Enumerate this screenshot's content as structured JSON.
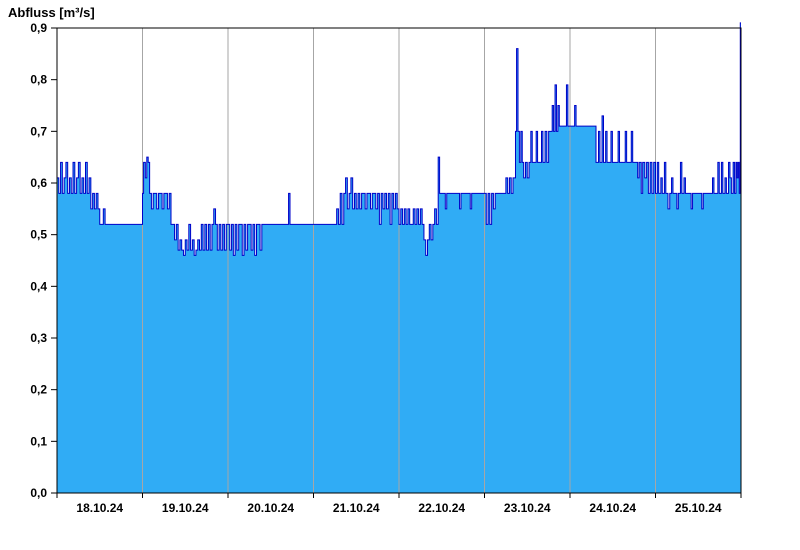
{
  "chart_data": {
    "type": "area",
    "title": "Abfluss [m³/s]",
    "xlabel": "",
    "ylabel": "Abfluss [m³/s]",
    "ylim": [
      0.0,
      0.9
    ],
    "t_range": [
      0,
      192
    ],
    "x_unit": "hours",
    "grid": "vertical-day-lines",
    "legend": "none",
    "fill_color": "#30ACF5",
    "line_color": "#0000C8",
    "grid_color": "#A6A6A6",
    "axis_color": "#000000",
    "x_labels": [
      "18.10.24",
      "19.10.24",
      "20.10.24",
      "21.10.24",
      "22.10.24",
      "23.10.24",
      "24.10.24",
      "25.10.24"
    ],
    "y_ticks": [
      {
        "value": 0.0,
        "label": "0,0"
      },
      {
        "value": 0.1,
        "label": "0,1"
      },
      {
        "value": 0.2,
        "label": "0,2"
      },
      {
        "value": 0.3,
        "label": "0,3"
      },
      {
        "value": 0.4,
        "label": "0,4"
      },
      {
        "value": 0.5,
        "label": "0,5"
      },
      {
        "value": 0.6,
        "label": "0,6"
      },
      {
        "value": 0.7,
        "label": "0,7"
      },
      {
        "value": 0.8,
        "label": "0,8"
      },
      {
        "value": 0.9,
        "label": "0,9"
      }
    ],
    "points": [
      [
        0,
        0.61
      ],
      [
        0.5,
        0.58
      ],
      [
        1,
        0.64
      ],
      [
        1.5,
        0.58
      ],
      [
        2,
        0.61
      ],
      [
        2.5,
        0.64
      ],
      [
        3,
        0.58
      ],
      [
        3.5,
        0.61
      ],
      [
        4,
        0.58
      ],
      [
        4.5,
        0.64
      ],
      [
        5,
        0.58
      ],
      [
        5.5,
        0.61
      ],
      [
        6,
        0.64
      ],
      [
        6.5,
        0.58
      ],
      [
        7,
        0.61
      ],
      [
        7.5,
        0.58
      ],
      [
        8,
        0.64
      ],
      [
        8.5,
        0.58
      ],
      [
        9,
        0.61
      ],
      [
        9.5,
        0.55
      ],
      [
        10,
        0.58
      ],
      [
        10.5,
        0.55
      ],
      [
        11,
        0.58
      ],
      [
        11.5,
        0.55
      ],
      [
        12,
        0.52
      ],
      [
        13,
        0.55
      ],
      [
        13.5,
        0.52
      ],
      [
        24,
        0.58
      ],
      [
        24.3,
        0.64
      ],
      [
        24.8,
        0.61
      ],
      [
        25.2,
        0.65
      ],
      [
        25.6,
        0.64
      ],
      [
        26,
        0.58
      ],
      [
        26.5,
        0.55
      ],
      [
        27,
        0.58
      ],
      [
        28,
        0.55
      ],
      [
        28.5,
        0.58
      ],
      [
        29.5,
        0.55
      ],
      [
        30,
        0.58
      ],
      [
        31,
        0.55
      ],
      [
        31.5,
        0.58
      ],
      [
        32,
        0.52
      ],
      [
        33,
        0.49
      ],
      [
        33.5,
        0.52
      ],
      [
        34,
        0.47
      ],
      [
        34.5,
        0.49
      ],
      [
        35,
        0.47
      ],
      [
        35.5,
        0.46
      ],
      [
        36,
        0.49
      ],
      [
        36.5,
        0.47
      ],
      [
        37,
        0.52
      ],
      [
        37.5,
        0.47
      ],
      [
        38,
        0.49
      ],
      [
        38.5,
        0.46
      ],
      [
        39,
        0.47
      ],
      [
        39.5,
        0.49
      ],
      [
        40,
        0.47
      ],
      [
        40.5,
        0.52
      ],
      [
        41,
        0.47
      ],
      [
        41.5,
        0.52
      ],
      [
        42,
        0.47
      ],
      [
        42.5,
        0.52
      ],
      [
        43,
        0.47
      ],
      [
        43.5,
        0.52
      ],
      [
        44,
        0.55
      ],
      [
        44.5,
        0.52
      ],
      [
        45,
        0.47
      ],
      [
        45.5,
        0.52
      ],
      [
        46,
        0.47
      ],
      [
        46.5,
        0.52
      ],
      [
        47,
        0.47
      ],
      [
        47.5,
        0.52
      ],
      [
        48.5,
        0.47
      ],
      [
        49,
        0.52
      ],
      [
        49.5,
        0.46
      ],
      [
        50,
        0.52
      ],
      [
        50.5,
        0.47
      ],
      [
        51,
        0.52
      ],
      [
        52,
        0.46
      ],
      [
        52.5,
        0.52
      ],
      [
        53,
        0.47
      ],
      [
        53.5,
        0.52
      ],
      [
        54.5,
        0.47
      ],
      [
        55,
        0.52
      ],
      [
        55.5,
        0.46
      ],
      [
        56,
        0.52
      ],
      [
        57,
        0.47
      ],
      [
        57.5,
        0.52
      ],
      [
        65,
        0.58
      ],
      [
        65.4,
        0.52
      ],
      [
        78.5,
        0.55
      ],
      [
        79,
        0.52
      ],
      [
        79.5,
        0.58
      ],
      [
        80,
        0.52
      ],
      [
        80.5,
        0.58
      ],
      [
        81,
        0.61
      ],
      [
        81.5,
        0.55
      ],
      [
        82,
        0.58
      ],
      [
        82.5,
        0.61
      ],
      [
        83,
        0.55
      ],
      [
        83.5,
        0.58
      ],
      [
        84,
        0.55
      ],
      [
        84.5,
        0.58
      ],
      [
        85,
        0.55
      ],
      [
        85.5,
        0.58
      ],
      [
        86.5,
        0.55
      ],
      [
        87,
        0.58
      ],
      [
        88,
        0.55
      ],
      [
        88.5,
        0.58
      ],
      [
        89.5,
        0.55
      ],
      [
        90,
        0.58
      ],
      [
        90.5,
        0.52
      ],
      [
        91,
        0.58
      ],
      [
        91.5,
        0.55
      ],
      [
        92,
        0.58
      ],
      [
        92.5,
        0.55
      ],
      [
        93,
        0.58
      ],
      [
        93.5,
        0.52
      ],
      [
        94,
        0.58
      ],
      [
        94.5,
        0.55
      ],
      [
        95,
        0.58
      ],
      [
        95.5,
        0.55
      ],
      [
        96,
        0.52
      ],
      [
        96.5,
        0.55
      ],
      [
        97,
        0.52
      ],
      [
        97.5,
        0.55
      ],
      [
        98,
        0.52
      ],
      [
        98.5,
        0.55
      ],
      [
        99,
        0.52
      ],
      [
        100,
        0.55
      ],
      [
        100.5,
        0.52
      ],
      [
        101,
        0.55
      ],
      [
        101.5,
        0.52
      ],
      [
        102,
        0.55
      ],
      [
        102.5,
        0.52
      ],
      [
        103,
        0.49
      ],
      [
        103.5,
        0.46
      ],
      [
        104,
        0.49
      ],
      [
        104.5,
        0.52
      ],
      [
        105,
        0.49
      ],
      [
        105.5,
        0.52
      ],
      [
        106,
        0.55
      ],
      [
        106.5,
        0.52
      ],
      [
        107,
        0.65
      ],
      [
        107.4,
        0.58
      ],
      [
        109,
        0.55
      ],
      [
        109.4,
        0.58
      ],
      [
        113,
        0.55
      ],
      [
        113.4,
        0.58
      ],
      [
        116,
        0.55
      ],
      [
        116.4,
        0.58
      ],
      [
        120,
        0.58
      ],
      [
        120.5,
        0.52
      ],
      [
        121,
        0.58
      ],
      [
        121.5,
        0.52
      ],
      [
        122,
        0.58
      ],
      [
        122.5,
        0.55
      ],
      [
        123,
        0.58
      ],
      [
        126,
        0.61
      ],
      [
        126.5,
        0.58
      ],
      [
        127,
        0.61
      ],
      [
        127.5,
        0.58
      ],
      [
        128,
        0.61
      ],
      [
        128.7,
        0.7
      ],
      [
        129,
        0.86
      ],
      [
        129.4,
        0.7
      ],
      [
        129.8,
        0.64
      ],
      [
        130.2,
        0.7
      ],
      [
        130.6,
        0.64
      ],
      [
        131,
        0.61
      ],
      [
        131.5,
        0.64
      ],
      [
        132,
        0.61
      ],
      [
        132.5,
        0.64
      ],
      [
        133,
        0.7
      ],
      [
        133.4,
        0.64
      ],
      [
        134.5,
        0.7
      ],
      [
        134.9,
        0.64
      ],
      [
        136,
        0.7
      ],
      [
        136.4,
        0.64
      ],
      [
        137,
        0.7
      ],
      [
        137.5,
        0.64
      ],
      [
        138,
        0.7
      ],
      [
        139,
        0.75
      ],
      [
        139.4,
        0.7
      ],
      [
        139.8,
        0.79
      ],
      [
        140.2,
        0.7
      ],
      [
        140.6,
        0.75
      ],
      [
        141,
        0.71
      ],
      [
        143,
        0.79
      ],
      [
        143.4,
        0.71
      ],
      [
        145.3,
        0.75
      ],
      [
        145.7,
        0.71
      ],
      [
        151.3,
        0.64
      ],
      [
        152,
        0.7
      ],
      [
        152.4,
        0.64
      ],
      [
        153,
        0.73
      ],
      [
        153.4,
        0.64
      ],
      [
        154,
        0.7
      ],
      [
        154.4,
        0.64
      ],
      [
        155.5,
        0.7
      ],
      [
        155.9,
        0.64
      ],
      [
        157.5,
        0.7
      ],
      [
        157.9,
        0.64
      ],
      [
        159.5,
        0.7
      ],
      [
        159.9,
        0.64
      ],
      [
        161.2,
        0.7
      ],
      [
        161.6,
        0.64
      ],
      [
        163,
        0.61
      ],
      [
        163.4,
        0.64
      ],
      [
        164,
        0.58
      ],
      [
        164.4,
        0.64
      ],
      [
        165,
        0.61
      ],
      [
        165.5,
        0.64
      ],
      [
        166,
        0.58
      ],
      [
        166.5,
        0.64
      ],
      [
        167,
        0.58
      ],
      [
        167.5,
        0.64
      ],
      [
        168,
        0.58
      ],
      [
        168.5,
        0.64
      ],
      [
        168.9,
        0.58
      ],
      [
        169.5,
        0.61
      ],
      [
        169.9,
        0.58
      ],
      [
        170.5,
        0.64
      ],
      [
        170.9,
        0.58
      ],
      [
        171.5,
        0.55
      ],
      [
        172,
        0.58
      ],
      [
        172.5,
        0.61
      ],
      [
        172.9,
        0.58
      ],
      [
        174,
        0.55
      ],
      [
        174.4,
        0.58
      ],
      [
        175,
        0.64
      ],
      [
        175.4,
        0.58
      ],
      [
        176,
        0.61
      ],
      [
        176.4,
        0.58
      ],
      [
        178,
        0.55
      ],
      [
        178.4,
        0.58
      ],
      [
        181,
        0.55
      ],
      [
        181.4,
        0.58
      ],
      [
        184,
        0.61
      ],
      [
        184.4,
        0.58
      ],
      [
        185.5,
        0.64
      ],
      [
        185.9,
        0.58
      ],
      [
        186.5,
        0.64
      ],
      [
        186.9,
        0.58
      ],
      [
        187.5,
        0.61
      ],
      [
        187.9,
        0.58
      ],
      [
        188.5,
        0.64
      ],
      [
        188.9,
        0.61
      ],
      [
        189.3,
        0.58
      ],
      [
        189.8,
        0.64
      ],
      [
        190.2,
        0.58
      ],
      [
        190.6,
        0.64
      ],
      [
        190.9,
        0.61
      ],
      [
        191.2,
        0.64
      ],
      [
        191.5,
        0.58
      ],
      [
        191.8,
        0.91
      ]
    ]
  }
}
